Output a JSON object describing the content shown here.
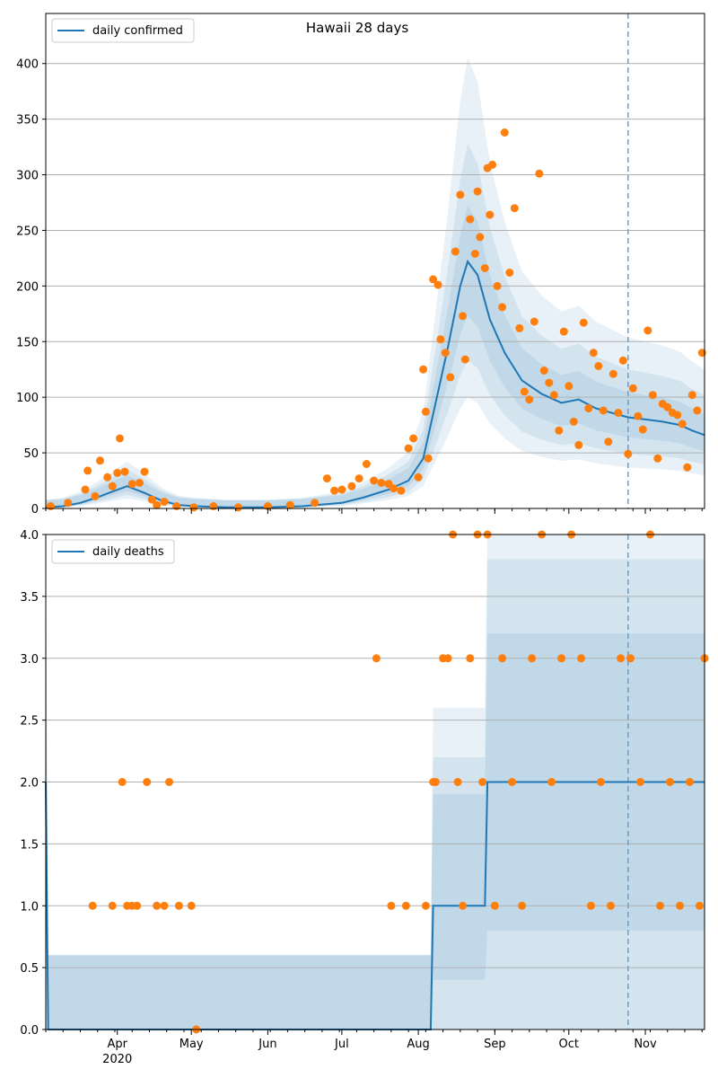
{
  "chart_data": [
    {
      "type": "line",
      "title": "Hawaii 28 days",
      "legend": "daily confirmed",
      "legend_position": "top-left",
      "grid": true,
      "ylim": [
        0,
        445
      ],
      "yticks": [
        0,
        50,
        100,
        150,
        200,
        250,
        300,
        350,
        400
      ],
      "xlim": [
        "2020-03-03",
        "2020-11-25"
      ],
      "vline_date": "2020-10-25",
      "series": [
        {
          "kind": "line",
          "x": [
            "2020-03-03",
            "2020-03-10",
            "2020-03-17",
            "2020-03-24",
            "2020-03-31",
            "2020-04-05",
            "2020-04-12",
            "2020-04-19",
            "2020-04-26",
            "2020-05-03",
            "2020-05-15",
            "2020-06-01",
            "2020-06-15",
            "2020-07-01",
            "2020-07-10",
            "2020-07-20",
            "2020-07-28",
            "2020-08-03",
            "2020-08-08",
            "2020-08-13",
            "2020-08-18",
            "2020-08-21",
            "2020-08-25",
            "2020-08-30",
            "2020-09-05",
            "2020-09-12",
            "2020-09-20",
            "2020-09-28",
            "2020-10-05",
            "2020-10-12",
            "2020-10-20",
            "2020-10-25",
            "2020-11-01",
            "2020-11-08",
            "2020-11-15",
            "2020-11-20",
            "2020-11-25"
          ],
          "y": [
            1,
            2,
            5,
            10,
            16,
            20,
            14,
            7,
            3,
            2,
            1,
            1,
            2,
            5,
            10,
            17,
            25,
            45,
            95,
            145,
            200,
            222,
            210,
            170,
            140,
            115,
            103,
            95,
            98,
            90,
            85,
            82,
            80,
            78,
            75,
            70,
            66
          ]
        },
        {
          "kind": "scatter",
          "x": [
            "2020-03-05",
            "2020-03-12",
            "2020-03-19",
            "2020-03-20",
            "2020-03-23",
            "2020-03-25",
            "2020-03-28",
            "2020-03-30",
            "2020-04-01",
            "2020-04-02",
            "2020-04-04",
            "2020-04-07",
            "2020-04-10",
            "2020-04-12",
            "2020-04-15",
            "2020-04-17",
            "2020-04-20",
            "2020-04-25",
            "2020-05-02",
            "2020-05-10",
            "2020-05-20",
            "2020-06-01",
            "2020-06-10",
            "2020-06-20",
            "2020-06-25",
            "2020-06-28",
            "2020-07-01",
            "2020-07-05",
            "2020-07-08",
            "2020-07-11",
            "2020-07-14",
            "2020-07-17",
            "2020-07-20",
            "2020-07-22",
            "2020-07-25",
            "2020-07-28",
            "2020-07-30",
            "2020-08-01",
            "2020-08-03",
            "2020-08-04",
            "2020-08-05",
            "2020-08-07",
            "2020-08-09",
            "2020-08-10",
            "2020-08-12",
            "2020-08-14",
            "2020-08-16",
            "2020-08-18",
            "2020-08-19",
            "2020-08-20",
            "2020-08-22",
            "2020-08-24",
            "2020-08-25",
            "2020-08-26",
            "2020-08-28",
            "2020-08-29",
            "2020-08-30",
            "2020-08-31",
            "2020-09-02",
            "2020-09-04",
            "2020-09-05",
            "2020-09-07",
            "2020-09-09",
            "2020-09-11",
            "2020-09-13",
            "2020-09-15",
            "2020-09-17",
            "2020-09-19",
            "2020-09-21",
            "2020-09-23",
            "2020-09-25",
            "2020-09-27",
            "2020-09-29",
            "2020-10-01",
            "2020-10-03",
            "2020-10-05",
            "2020-10-07",
            "2020-10-09",
            "2020-10-11",
            "2020-10-13",
            "2020-10-15",
            "2020-10-17",
            "2020-10-19",
            "2020-10-21",
            "2020-10-23",
            "2020-10-25",
            "2020-10-27",
            "2020-10-29",
            "2020-10-31",
            "2020-11-02",
            "2020-11-04",
            "2020-11-06",
            "2020-11-08",
            "2020-11-10",
            "2020-11-12",
            "2020-11-14",
            "2020-11-16",
            "2020-11-18",
            "2020-11-20",
            "2020-11-22",
            "2020-11-24"
          ],
          "y": [
            2,
            5,
            17,
            34,
            11,
            43,
            28,
            20,
            32,
            63,
            33,
            22,
            23,
            33,
            8,
            3,
            6,
            2,
            1,
            2,
            1,
            2,
            3,
            5,
            27,
            16,
            17,
            20,
            27,
            40,
            25,
            23,
            22,
            18,
            16,
            54,
            63,
            28,
            125,
            87,
            45,
            206,
            201,
            152,
            140,
            118,
            231,
            282,
            173,
            134,
            260,
            229,
            285,
            244,
            216,
            306,
            264,
            309,
            200,
            181,
            338,
            212,
            270,
            162,
            105,
            98,
            168,
            301,
            124,
            113,
            102,
            70,
            159,
            110,
            78,
            57,
            167,
            90,
            140,
            128,
            88,
            60,
            121,
            86,
            133,
            49,
            108,
            83,
            71,
            160,
            102,
            45,
            94,
            91,
            86,
            84,
            76,
            37,
            102,
            88,
            140
          ]
        }
      ]
    },
    {
      "type": "line",
      "legend": "daily deaths",
      "legend_position": "top-left",
      "grid": true,
      "ylim": [
        0,
        4
      ],
      "yticks": [
        "0.0",
        "0.5",
        "1.0",
        "1.5",
        "2.0",
        "2.5",
        "3.0",
        "3.5",
        "4.0"
      ],
      "xlim": [
        "2020-03-03",
        "2020-11-25"
      ],
      "xticks": [
        "Apr",
        "May",
        "Jun",
        "Jul",
        "Aug",
        "Sep",
        "Oct",
        "Nov"
      ],
      "xtick_year": "2020",
      "vline_date": "2020-10-25",
      "series": [
        {
          "kind": "line",
          "x": [
            "2020-03-03",
            "2020-03-04",
            "2020-08-06",
            "2020-08-07",
            "2020-08-28",
            "2020-08-29",
            "2020-11-25"
          ],
          "y": [
            2,
            0,
            0,
            1,
            1,
            2,
            2
          ]
        },
        {
          "kind": "scatter",
          "x": [
            "2020-03-22",
            "2020-03-30",
            "2020-04-03",
            "2020-04-05",
            "2020-04-07",
            "2020-04-09",
            "2020-04-13",
            "2020-04-17",
            "2020-04-20",
            "2020-04-22",
            "2020-04-26",
            "2020-05-01",
            "2020-05-03",
            "2020-07-15",
            "2020-07-21",
            "2020-07-27",
            "2020-08-04",
            "2020-08-07",
            "2020-08-08",
            "2020-08-11",
            "2020-08-13",
            "2020-08-15",
            "2020-08-17",
            "2020-08-19",
            "2020-08-22",
            "2020-08-25",
            "2020-08-27",
            "2020-08-29",
            "2020-09-01",
            "2020-09-04",
            "2020-09-08",
            "2020-09-12",
            "2020-09-16",
            "2020-09-20",
            "2020-09-24",
            "2020-09-28",
            "2020-10-02",
            "2020-10-06",
            "2020-10-10",
            "2020-10-14",
            "2020-10-18",
            "2020-10-22",
            "2020-10-26",
            "2020-10-30",
            "2020-11-03",
            "2020-11-07",
            "2020-11-11",
            "2020-11-15",
            "2020-11-19",
            "2020-11-23",
            "2020-11-25"
          ],
          "y": [
            1,
            1,
            2,
            1,
            1,
            1,
            2,
            1,
            1,
            2,
            1,
            1,
            0,
            3,
            1,
            1,
            1,
            2,
            2,
            3,
            3,
            4,
            2,
            1,
            3,
            4,
            2,
            4,
            1,
            3,
            2,
            1,
            3,
            4,
            2,
            3,
            4,
            3,
            1,
            2,
            1,
            3,
            3,
            2,
            4,
            1,
            2,
            1,
            2,
            1,
            3
          ]
        }
      ]
    }
  ]
}
